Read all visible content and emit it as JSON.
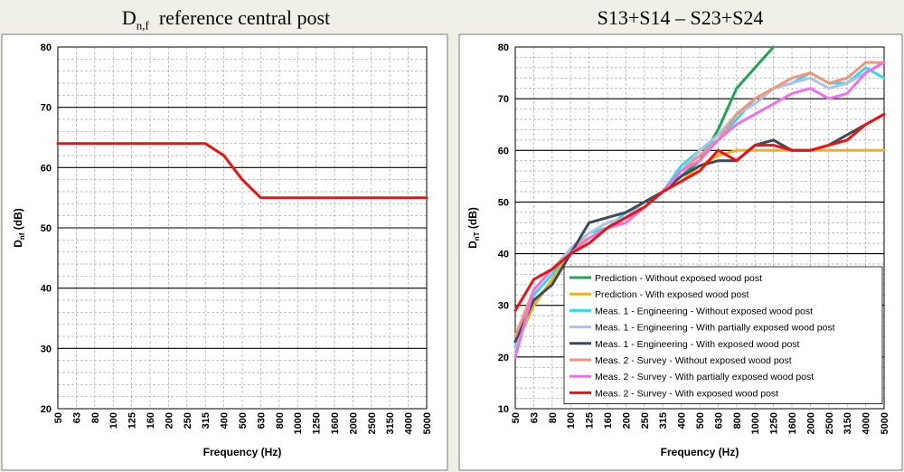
{
  "chart_data": [
    {
      "type": "line",
      "title_main": "D",
      "title_sub": "n,f",
      "title_rest": "reference central post",
      "xlabel": "Frequency (Hz)",
      "ylabel_main": "D",
      "ylabel_sub": "nf",
      "ylabel_rest": " (dB)",
      "categories": [
        "50",
        "63",
        "80",
        "100",
        "125",
        "160",
        "200",
        "250",
        "315",
        "400",
        "500",
        "630",
        "800",
        "1000",
        "1250",
        "1600",
        "2000",
        "2500",
        "3150",
        "4000",
        "5000"
      ],
      "ylim": [
        20,
        80
      ],
      "yticks": [
        20,
        30,
        40,
        50,
        60,
        70,
        80
      ],
      "grid": true,
      "series": [
        {
          "color": "#ee1111",
          "values": [
            64,
            64,
            64,
            64,
            64,
            64,
            64,
            64,
            64,
            62,
            58,
            55,
            55,
            55,
            55,
            55,
            55,
            55,
            55,
            55,
            55
          ]
        }
      ]
    },
    {
      "type": "line",
      "title": "S13+S14 – S23+S24",
      "xlabel": "Frequency (Hz)",
      "ylabel_main": "D",
      "ylabel_sub": "nT",
      "ylabel_rest": " (dB)",
      "categories": [
        "50",
        "63",
        "80",
        "100",
        "125",
        "160",
        "200",
        "250",
        "315",
        "400",
        "500",
        "630",
        "800",
        "1000",
        "1250",
        "1600",
        "2000",
        "2500",
        "3150",
        "4000",
        "5000"
      ],
      "ylim": [
        10,
        80
      ],
      "yticks": [
        10,
        20,
        30,
        40,
        50,
        60,
        70,
        80
      ],
      "grid": true,
      "legend_position": "bottom-right",
      "series": [
        {
          "name": "Prediction - Without exposed wood post",
          "color": "#1ea650",
          "values": [
            22,
            30,
            35,
            41,
            43,
            45,
            47,
            49,
            52,
            55,
            58,
            64,
            72,
            76,
            80,
            null,
            null,
            null,
            null,
            null,
            null
          ]
        },
        {
          "name": "Prediction - With exposed wood post",
          "color": "#f0b020",
          "values": [
            22,
            30,
            35,
            41,
            43,
            45,
            47,
            49,
            52,
            54,
            57,
            59,
            60,
            60,
            60,
            60,
            60,
            60,
            60,
            60,
            60
          ]
        },
        {
          "name": "Meas. 1 - Engineering - Without exposed wood post",
          "color": "#33d8e8",
          "values": [
            22,
            32,
            36,
            41,
            44,
            45,
            48,
            50,
            52,
            57,
            60,
            62,
            66,
            70,
            72,
            73,
            75,
            73,
            73,
            76,
            74
          ]
        },
        {
          "name": "Meas. 1 - Engineering - With partially exposed wood post",
          "color": "#b0c2e4",
          "values": [
            21,
            33,
            37,
            41,
            44,
            46,
            47,
            50,
            52,
            56,
            60,
            63,
            67,
            69,
            72,
            73,
            74,
            72,
            73,
            75,
            77
          ]
        },
        {
          "name": "Meas. 1 - Engineering - With exposed wood post",
          "color": "#3c4b5a",
          "values": [
            23,
            31,
            34,
            40,
            46,
            47,
            48,
            50,
            52,
            55,
            57,
            58,
            58,
            61,
            62,
            60,
            60,
            61,
            63,
            65,
            67
          ]
        },
        {
          "name": "Meas. 2 - Survey - Without exposed wood post",
          "color": "#f0967a",
          "values": [
            24,
            33,
            37,
            40,
            43,
            45,
            46,
            49,
            52,
            56,
            59,
            62,
            67,
            70,
            72,
            74,
            75,
            73,
            74,
            77,
            77
          ]
        },
        {
          "name": "Meas. 2 - Survey - With partially exposed wood post",
          "color": "#f070e8",
          "values": [
            20,
            33,
            37,
            40,
            43,
            45,
            46,
            49,
            52,
            56,
            58,
            62,
            65,
            67,
            69,
            71,
            72,
            70,
            71,
            75,
            77
          ]
        },
        {
          "name": "Meas. 2 - Survey - With exposed wood post",
          "color": "#ee1111",
          "values": [
            29,
            35,
            37,
            40,
            42,
            45,
            47,
            49,
            52,
            54,
            56,
            60,
            58,
            61,
            61,
            60,
            60,
            61,
            62,
            65,
            67
          ]
        }
      ]
    }
  ]
}
